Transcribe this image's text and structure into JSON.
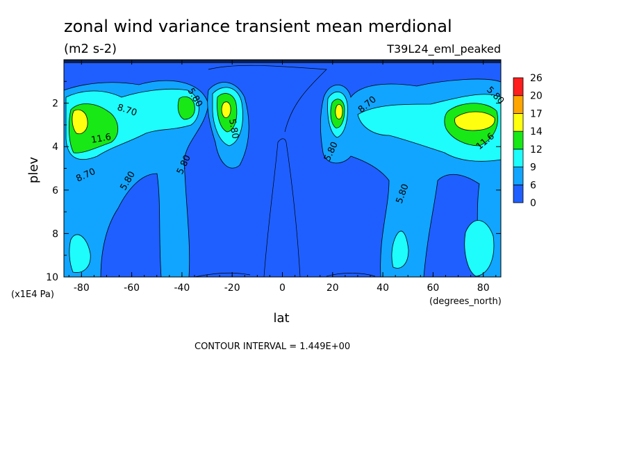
{
  "chart_data": {
    "type": "heatmap",
    "title": "zonal wind variance transient mean merdional",
    "subtitle": "(m2 s-2)",
    "dataset_label": "T39L24_eml_peaked",
    "xlabel": "lat",
    "ylabel": "plev",
    "x_unit": "(degrees_north)",
    "y_unit": "(x1E4 Pa)",
    "xlim": [
      -87,
      87
    ],
    "ylim": [
      0,
      10
    ],
    "y_inverted": true,
    "x_ticks": [
      -80,
      -60,
      -40,
      -20,
      0,
      20,
      40,
      60,
      80
    ],
    "y_ticks": [
      2,
      4,
      6,
      8,
      10
    ],
    "contour_interval_text": "CONTOUR INTERVAL = 1.449E+00",
    "contour_labels": [
      "8.70",
      "5.80",
      "5.80",
      "11.6",
      "8.70",
      "5.80",
      "5.80",
      "5.80",
      "8.70",
      "5.80",
      "5.80",
      "11.6"
    ],
    "colorbar": {
      "levels": [
        "0",
        "6",
        "9",
        "12",
        "14",
        "17",
        "20",
        "26"
      ],
      "colors": [
        "#1f5fff",
        "#11a5ff",
        "#1efcfc",
        "#17e816",
        "#ffff10",
        "#ffa500",
        "#ff1e1e"
      ]
    },
    "peaks": [
      {
        "lat": -84,
        "plev": 3.0,
        "value": 16
      },
      {
        "lat": -37,
        "plev": 2.5,
        "value": 12.5
      },
      {
        "lat": -22,
        "plev": 2.5,
        "value": 15
      },
      {
        "lat": 23,
        "plev": 2.8,
        "value": 14
      },
      {
        "lat": 76,
        "plev": 3.0,
        "value": 15.5
      },
      {
        "lat": -84,
        "plev": 9.0,
        "value": 10
      },
      {
        "lat": 79,
        "plev": 9.0,
        "value": 10
      }
    ]
  }
}
